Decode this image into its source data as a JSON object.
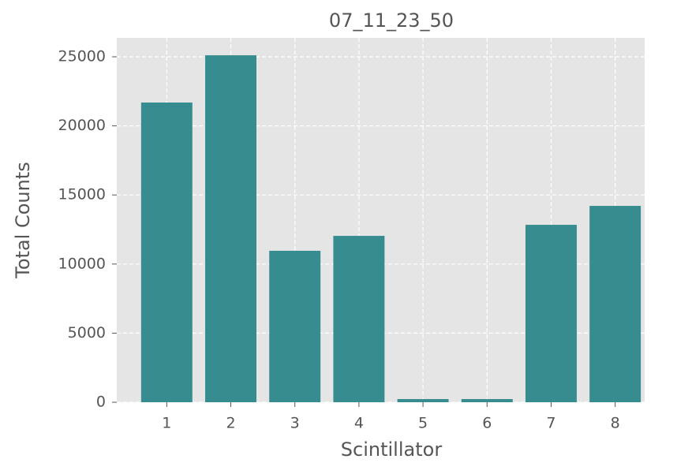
{
  "chart_data": {
    "type": "bar",
    "title": "07_11_23_50",
    "x_label": "Scintillator",
    "y_label": "Total Counts",
    "x": [
      1,
      2,
      3,
      4,
      5,
      6,
      7,
      8
    ],
    "values": [
      21690,
      25110,
      10960,
      12040,
      230,
      230,
      12840,
      14210
    ],
    "color": "#378c8f",
    "bar_width": 0.8,
    "xlim": [
      0.22,
      8.46
    ],
    "xticks": [
      1,
      2,
      3,
      4,
      5,
      6,
      7,
      8
    ],
    "ylim": [
      0,
      26370
    ],
    "yticks": [
      0,
      5000,
      10000,
      15000,
      20000,
      25000
    ],
    "grid": true
  }
}
